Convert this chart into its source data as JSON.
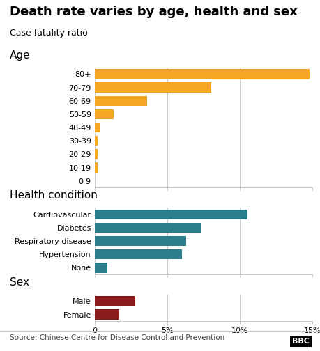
{
  "title": "Death rate varies by age, health and sex",
  "subtitle": "Case fatality ratio",
  "source": "Source: Chinese Centre for Disease Control and Prevention",
  "xlim": [
    0,
    15
  ],
  "xticks": [
    0,
    5,
    10,
    15
  ],
  "xticklabels": [
    "0",
    "5%",
    "10%",
    "15%"
  ],
  "age_labels": [
    "80+",
    "70-79",
    "60-69",
    "50-59",
    "40-49",
    "30-39",
    "20-29",
    "10-19",
    "0-9"
  ],
  "age_values": [
    14.8,
    8.0,
    3.6,
    1.3,
    0.4,
    0.2,
    0.2,
    0.2,
    0.0
  ],
  "age_color": "#F5A623",
  "health_labels": [
    "Cardiovascular",
    "Diabetes",
    "Respiratory disease",
    "Hypertension",
    "None"
  ],
  "health_values": [
    10.5,
    7.3,
    6.3,
    6.0,
    0.9
  ],
  "health_color": "#2B7D8B",
  "sex_labels": [
    "Male",
    "Female"
  ],
  "sex_values": [
    2.8,
    1.7
  ],
  "sex_color": "#8B1A1A",
  "background_color": "#FFFFFF",
  "section_label_fontsize": 11,
  "title_fontsize": 13,
  "subtitle_fontsize": 9,
  "tick_fontsize": 8,
  "bar_label_fontsize": 8,
  "source_fontsize": 7.5
}
